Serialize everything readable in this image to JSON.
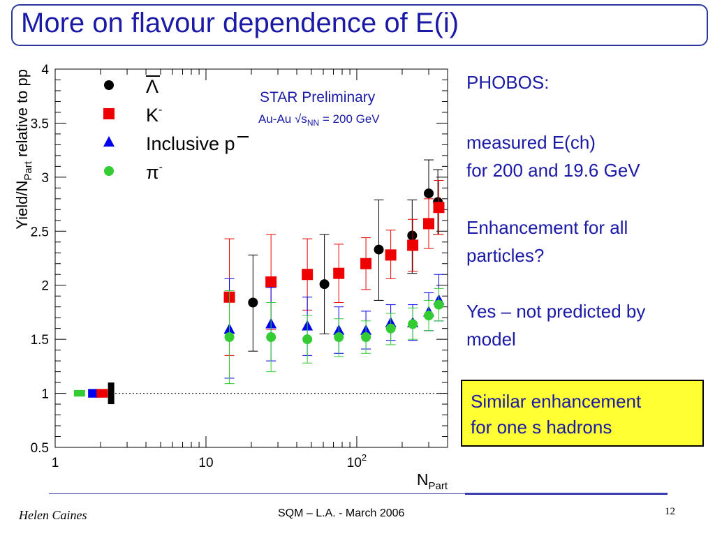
{
  "title": "More on flavour dependence of E(i)",
  "chart_data": {
    "type": "scatter",
    "xscale": "log",
    "xlim": [
      1,
      400
    ],
    "ylim": [
      0.5,
      4
    ],
    "xlabel": {
      "main": "N",
      "sub": "Part"
    },
    "ylabel": {
      "main": "Yield/N",
      "sub": "Part",
      "rest": " relative to pp"
    },
    "x_ticks": [
      {
        "value": 1,
        "main": "1",
        "sup": ""
      },
      {
        "value": 10,
        "main": "10",
        "sup": ""
      },
      {
        "value": 100,
        "main": "10",
        "sup": "2"
      }
    ],
    "y_ticks": [
      "0.5",
      "1",
      "1.5",
      "2",
      "2.5",
      "3",
      "3.5",
      "4"
    ],
    "annotation": {
      "line1": "STAR Preliminary",
      "line2_prefix": "Au-Au √s",
      "line2_sub": "NN",
      "line2_suffix": " = 200 GeV"
    },
    "reference_line": {
      "y": 1,
      "style": "dotted"
    },
    "legend": [
      {
        "series": "lambda_bar",
        "color": "#000000",
        "marker": "circle",
        "symbol": "Λ",
        "overline": true,
        "sup": ""
      },
      {
        "series": "k_minus",
        "color": "#ee0000",
        "marker": "square",
        "symbol": "K",
        "overline": false,
        "sup": "-"
      },
      {
        "series": "pbar",
        "color": "#0000ee",
        "marker": "triangle",
        "symbol": "Inclusive p",
        "overline": false,
        "overline_last": true,
        "sup": ""
      },
      {
        "series": "pi_minus",
        "color": "#33cc33",
        "marker": "circle",
        "symbol": "π",
        "overline": false,
        "sup": "-"
      }
    ],
    "series": [
      {
        "key": "lambda_bar",
        "color": "#000000",
        "marker": "circle",
        "points": [
          {
            "x": 20.5,
            "y": 1.84,
            "ylo": 1.39,
            "yhi": 2.28
          },
          {
            "x": 61,
            "y": 2.01,
            "ylo": 1.55,
            "yhi": 2.47
          },
          {
            "x": 140,
            "y": 2.33,
            "ylo": 1.86,
            "yhi": 2.79
          },
          {
            "x": 233,
            "y": 2.46,
            "ylo": 2.11,
            "yhi": 2.79
          },
          {
            "x": 300,
            "y": 2.85,
            "ylo": 2.55,
            "yhi": 3.16
          },
          {
            "x": 345,
            "y": 2.77,
            "ylo": 2.47,
            "yhi": 3.07
          }
        ]
      },
      {
        "key": "k_minus",
        "color": "#ee0000",
        "marker": "square",
        "points": [
          {
            "x": 14.3,
            "y": 1.89,
            "ylo": 1.35,
            "yhi": 2.43
          },
          {
            "x": 27,
            "y": 2.03,
            "ylo": 1.59,
            "yhi": 2.47
          },
          {
            "x": 47,
            "y": 2.1,
            "ylo": 1.77,
            "yhi": 2.43
          },
          {
            "x": 76,
            "y": 2.11,
            "ylo": 1.84,
            "yhi": 2.38
          },
          {
            "x": 115,
            "y": 2.2,
            "ylo": 1.96,
            "yhi": 2.44
          },
          {
            "x": 168,
            "y": 2.28,
            "ylo": 2.06,
            "yhi": 2.51
          },
          {
            "x": 235,
            "y": 2.37,
            "ylo": 2.13,
            "yhi": 2.61
          },
          {
            "x": 300,
            "y": 2.57,
            "ylo": 2.34,
            "yhi": 2.8
          },
          {
            "x": 350,
            "y": 2.72,
            "ylo": 2.47,
            "yhi": 2.97
          }
        ]
      },
      {
        "key": "pbar",
        "color": "#0000ee",
        "marker": "triangle",
        "points": [
          {
            "x": 14.3,
            "y": 1.59,
            "ylo": 1.14,
            "yhi": 2.06
          },
          {
            "x": 27,
            "y": 1.64,
            "ylo": 1.3,
            "yhi": 1.98
          },
          {
            "x": 47,
            "y": 1.62,
            "ylo": 1.35,
            "yhi": 1.89
          },
          {
            "x": 76,
            "y": 1.58,
            "ylo": 1.37,
            "yhi": 1.8
          },
          {
            "x": 115,
            "y": 1.58,
            "ylo": 1.41,
            "yhi": 1.76
          },
          {
            "x": 168,
            "y": 1.65,
            "ylo": 1.49,
            "yhi": 1.82
          },
          {
            "x": 235,
            "y": 1.65,
            "ylo": 1.49,
            "yhi": 1.82
          },
          {
            "x": 300,
            "y": 1.75,
            "ylo": 1.58,
            "yhi": 1.93
          },
          {
            "x": 350,
            "y": 1.86,
            "ylo": 1.67,
            "yhi": 2.1
          }
        ]
      },
      {
        "key": "pi_minus",
        "color": "#33cc33",
        "marker": "circle",
        "points": [
          {
            "x": 14.3,
            "y": 1.52,
            "ylo": 1.09,
            "yhi": 1.95
          },
          {
            "x": 27,
            "y": 1.52,
            "ylo": 1.2,
            "yhi": 1.84
          },
          {
            "x": 47,
            "y": 1.5,
            "ylo": 1.28,
            "yhi": 1.72
          },
          {
            "x": 76,
            "y": 1.52,
            "ylo": 1.34,
            "yhi": 1.69
          },
          {
            "x": 115,
            "y": 1.52,
            "ylo": 1.37,
            "yhi": 1.67
          },
          {
            "x": 168,
            "y": 1.6,
            "ylo": 1.45,
            "yhi": 1.74
          },
          {
            "x": 235,
            "y": 1.64,
            "ylo": 1.5,
            "yhi": 1.79
          },
          {
            "x": 300,
            "y": 1.72,
            "ylo": 1.58,
            "yhi": 1.86
          },
          {
            "x": 350,
            "y": 1.82,
            "ylo": 1.67,
            "yhi": 1.97
          }
        ]
      },
      {
        "key": "pp_reference",
        "color": "#000000",
        "marker": "ref",
        "points": [
          {
            "x": 1.45,
            "y": 1.0,
            "ylo": 0.97,
            "yhi": 1.03,
            "color": "#33cc33"
          },
          {
            "x": 1.8,
            "y": 1.0,
            "ylo": 0.96,
            "yhi": 1.04,
            "color": "#0000ee"
          },
          {
            "x": 2.05,
            "y": 1.0,
            "ylo": 0.96,
            "yhi": 1.04,
            "color": "#ee0000"
          },
          {
            "x": 2.35,
            "y": 1.0,
            "ylo": 0.9,
            "yhi": 1.1,
            "color": "#000000"
          }
        ]
      }
    ]
  },
  "side_text": {
    "p1": "PHOBOS:",
    "p2_line1": "measured E(ch)",
    "p2_line2": "for 200 and 19.6 GeV",
    "p3_line1": "Enhancement for all",
    "p3_line2": "particles?",
    "p4_line1": "Yes – not predicted by",
    "p4_line2": "model"
  },
  "highlight": {
    "line1": "Similar enhancement",
    "line2": "for one s hadrons"
  },
  "footer": {
    "author": "Helen Caines",
    "center": "SQM  – L.A. - March 2006",
    "page": "12"
  }
}
